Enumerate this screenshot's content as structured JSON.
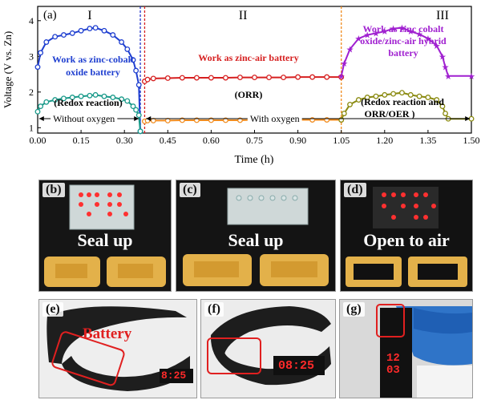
{
  "chart_data": {
    "type": "line",
    "panel_label": "(a)",
    "xlabel": "Time (h)",
    "ylabel": "Voltage (V vs. Zn)",
    "xlim": [
      0,
      1.5
    ],
    "ylim": [
      0.85,
      4.4
    ],
    "x_ticks": [
      "0.00",
      "0.15",
      "0.30",
      "0.45",
      "0.60",
      "0.75",
      "0.90",
      "1.05",
      "1.20",
      "1.35",
      "1.50"
    ],
    "y_ticks": [
      "1",
      "2",
      "3",
      "4"
    ],
    "regions": [
      {
        "label": "I",
        "x": 0.18
      },
      {
        "label": "II",
        "x": 0.71
      },
      {
        "label": "III",
        "x": 1.4
      }
    ],
    "dividers": [
      {
        "x": 0.355,
        "color": "#2233cc"
      },
      {
        "x": 0.37,
        "color": "#d62020"
      },
      {
        "x": 1.05,
        "color": "#f08c20"
      }
    ],
    "annotations": {
      "zinc_cobalt": "Work as zinc-cobalt oxide battery",
      "redox": "(Redox reaction)",
      "zinc_air": "Work as zinc-air battery",
      "orr": "(ORR)",
      "hybrid": "Work as zinc cobalt oxide/zinc-air hybrid battery",
      "redox_orr": "(Redox reaction and ORR/OER )",
      "without_oxygen": "Without oxygen",
      "with_oxygen": "With oxygen"
    },
    "series": [
      {
        "color": "#1f3fd0",
        "marker": "circle",
        "x": [
          0.0,
          0.01,
          0.03,
          0.06,
          0.09,
          0.12,
          0.15,
          0.18,
          0.2,
          0.23,
          0.26,
          0.29,
          0.31,
          0.33,
          0.34,
          0.35,
          0.355
        ],
        "y": [
          2.7,
          3.1,
          3.4,
          3.55,
          3.6,
          3.65,
          3.72,
          3.78,
          3.8,
          3.72,
          3.6,
          3.4,
          3.2,
          2.9,
          2.6,
          2.2,
          0.9
        ]
      },
      {
        "color": "#1a9a8a",
        "marker": "circle",
        "x": [
          0.0,
          0.01,
          0.03,
          0.06,
          0.09,
          0.12,
          0.15,
          0.18,
          0.2,
          0.23,
          0.26,
          0.29,
          0.31,
          0.33,
          0.34,
          0.35,
          0.355
        ],
        "y": [
          1.45,
          1.6,
          1.72,
          1.78,
          1.82,
          1.85,
          1.88,
          1.9,
          1.92,
          1.88,
          1.85,
          1.8,
          1.75,
          1.6,
          1.5,
          1.35,
          0.9
        ]
      },
      {
        "color": "#d62020",
        "marker": "circle",
        "x": [
          0.37,
          0.38,
          0.4,
          0.45,
          0.5,
          0.55,
          0.6,
          0.65,
          0.7,
          0.75,
          0.8,
          0.85,
          0.9,
          0.95,
          1.0,
          1.05
        ],
        "y": [
          2.3,
          2.35,
          2.38,
          2.39,
          2.4,
          2.4,
          2.4,
          2.4,
          2.41,
          2.41,
          2.41,
          2.41,
          2.42,
          2.42,
          2.42,
          2.42
        ]
      },
      {
        "color": "#f08c20",
        "marker": "circle",
        "x": [
          0.37,
          0.38,
          0.4,
          0.45,
          0.5,
          0.55,
          0.6,
          0.65,
          0.7,
          0.75,
          0.8,
          0.85,
          0.9,
          0.95,
          1.0,
          1.05
        ],
        "y": [
          1.18,
          1.2,
          1.2,
          1.2,
          1.21,
          1.21,
          1.21,
          1.21,
          1.21,
          1.22,
          1.22,
          1.22,
          1.22,
          1.22,
          1.22,
          1.22
        ]
      },
      {
        "color": "#a020d0",
        "marker": "star",
        "x": [
          1.05,
          1.06,
          1.08,
          1.11,
          1.14,
          1.17,
          1.2,
          1.23,
          1.26,
          1.29,
          1.32,
          1.35,
          1.38,
          1.4,
          1.41,
          1.42,
          1.5
        ],
        "y": [
          2.45,
          2.8,
          3.2,
          3.5,
          3.6,
          3.65,
          3.7,
          3.78,
          3.8,
          3.7,
          3.62,
          3.5,
          3.3,
          3.0,
          2.7,
          2.45,
          2.45
        ]
      },
      {
        "color": "#8a8a10",
        "marker": "circle",
        "x": [
          1.05,
          1.06,
          1.08,
          1.11,
          1.14,
          1.17,
          1.2,
          1.23,
          1.26,
          1.29,
          1.32,
          1.35,
          1.38,
          1.4,
          1.41,
          1.42,
          1.5
        ],
        "y": [
          1.22,
          1.4,
          1.65,
          1.78,
          1.85,
          1.88,
          1.92,
          1.95,
          1.98,
          1.92,
          1.88,
          1.85,
          1.78,
          1.6,
          1.4,
          1.25,
          1.25
        ]
      }
    ]
  },
  "photos": {
    "b": {
      "tag": "(b)",
      "caption": "Seal up"
    },
    "c": {
      "tag": "(c)",
      "caption": "Seal up"
    },
    "d": {
      "tag": "(d)",
      "caption": "Open to air"
    },
    "e": {
      "tag": "(e)",
      "label": "Battery",
      "display": "8:25"
    },
    "f": {
      "tag": "(f)",
      "display": "08:25"
    },
    "g": {
      "tag": "(g)",
      "display_top": "12",
      "display_bottom": "03"
    }
  }
}
